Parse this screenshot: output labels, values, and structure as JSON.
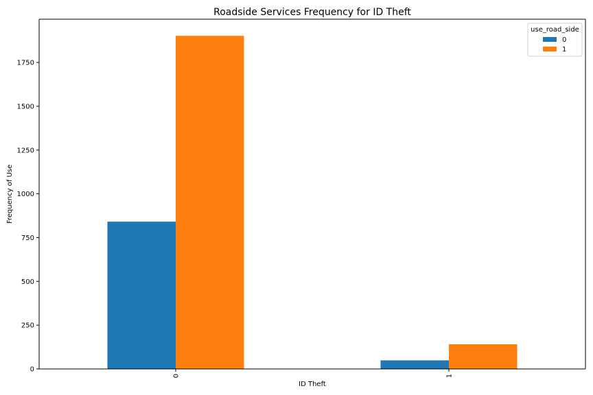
{
  "chart_data": {
    "type": "bar",
    "title": "Roadside Services Frequency for ID Theft",
    "xlabel": "ID Theft",
    "ylabel": "Frequency of Use",
    "categories": [
      "0",
      "1"
    ],
    "series": [
      {
        "name": "0",
        "values": [
          841,
          49
        ],
        "color": "#1f77b4"
      },
      {
        "name": "1",
        "values": [
          1902,
          141
        ],
        "color": "#ff7f0e"
      }
    ],
    "ylim": [
      0,
      1997
    ],
    "yticks": [
      0,
      250,
      500,
      750,
      1000,
      1250,
      1500,
      1750
    ],
    "legend": {
      "title": "use_road_side",
      "placement": "top-right"
    },
    "grid": false
  }
}
